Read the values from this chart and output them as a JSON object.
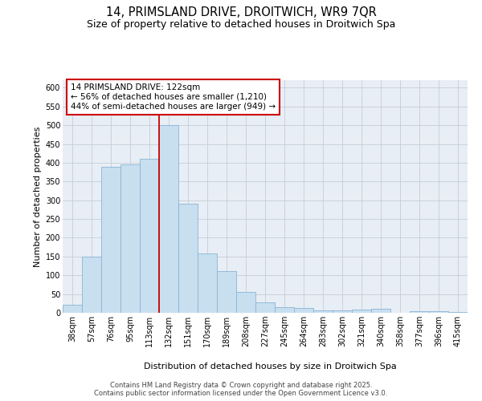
{
  "title": "14, PRIMSLAND DRIVE, DROITWICH, WR9 7QR",
  "subtitle": "Size of property relative to detached houses in Droitwich Spa",
  "xlabel": "Distribution of detached houses by size in Droitwich Spa",
  "ylabel": "Number of detached properties",
  "categories": [
    "38sqm",
    "57sqm",
    "76sqm",
    "95sqm",
    "113sqm",
    "132sqm",
    "151sqm",
    "170sqm",
    "189sqm",
    "208sqm",
    "227sqm",
    "245sqm",
    "264sqm",
    "283sqm",
    "302sqm",
    "321sqm",
    "340sqm",
    "358sqm",
    "377sqm",
    "396sqm",
    "415sqm"
  ],
  "bar_heights": [
    22,
    150,
    390,
    395,
    410,
    500,
    290,
    158,
    112,
    55,
    28,
    15,
    12,
    6,
    7,
    8,
    10,
    1,
    4,
    5,
    3
  ],
  "bar_color": "#c8dff0",
  "bar_edge_color": "#8ab4d4",
  "vline_color": "#cc0000",
  "vline_x": 4.5,
  "annotation_line1": "14 PRIMSLAND DRIVE: 122sqm",
  "annotation_line2": "← 56% of detached houses are smaller (1,210)",
  "annotation_line3": "44% of semi-detached houses are larger (949) →",
  "annotation_box_facecolor": "#ffffff",
  "annotation_box_edgecolor": "#cc0000",
  "ylim": [
    0,
    620
  ],
  "yticks": [
    0,
    50,
    100,
    150,
    200,
    250,
    300,
    350,
    400,
    450,
    500,
    550,
    600
  ],
  "plot_bg_color": "#e8eef5",
  "fig_bg_color": "#ffffff",
  "grid_color": "#c5cdd8",
  "footer_line1": "Contains HM Land Registry data © Crown copyright and database right 2025.",
  "footer_line2": "Contains public sector information licensed under the Open Government Licence v3.0.",
  "title_fontsize": 10.5,
  "subtitle_fontsize": 9,
  "axis_label_fontsize": 8,
  "tick_fontsize": 7,
  "annotation_fontsize": 7.5,
  "footer_fontsize": 6
}
